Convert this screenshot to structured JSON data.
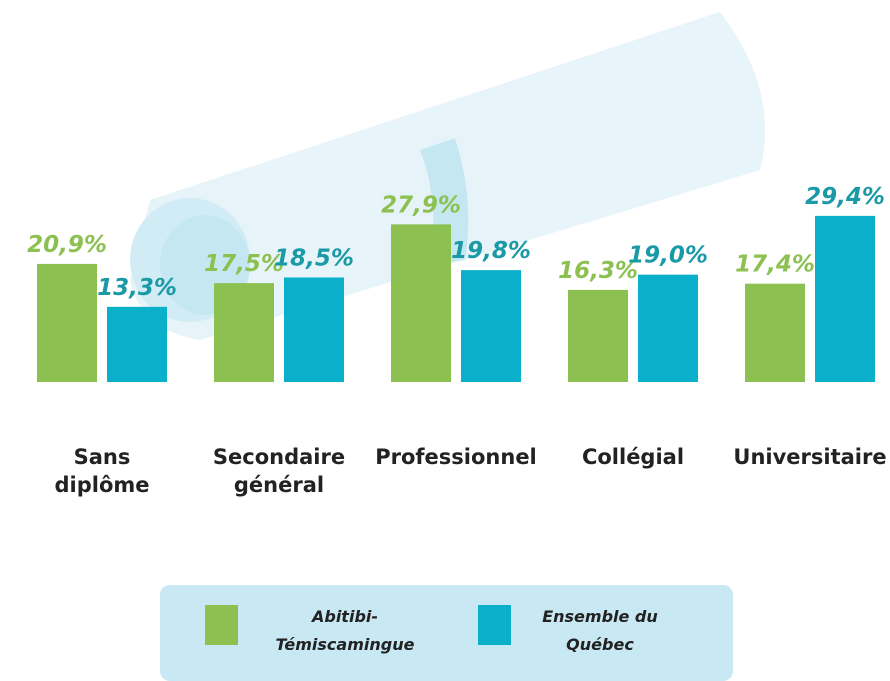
{
  "chart_data": {
    "type": "bar",
    "categories": [
      "Sans\ndiplôme",
      "Secondaire\ngénéral",
      "Professionnel",
      "Collégial",
      "Universitaire"
    ],
    "series": [
      {
        "name": "Abitibi-\nTémiscamingue",
        "color": "#8cc152",
        "label_color": "#8cc152",
        "values": [
          20.9,
          17.5,
          27.9,
          16.3,
          17.4
        ],
        "value_labels": [
          "20,9%",
          "17,5%",
          "27,9%",
          "16,3%",
          "17,4%"
        ]
      },
      {
        "name": "Ensemble du\nQuébec",
        "color": "#0aafc9",
        "label_color": "#1a9aa6",
        "values": [
          13.3,
          18.5,
          19.8,
          19.0,
          29.4
        ],
        "value_labels": [
          "13,3%",
          "18,5%",
          "19,8%",
          "19,0%",
          "29,4%"
        ]
      }
    ]
  }
}
